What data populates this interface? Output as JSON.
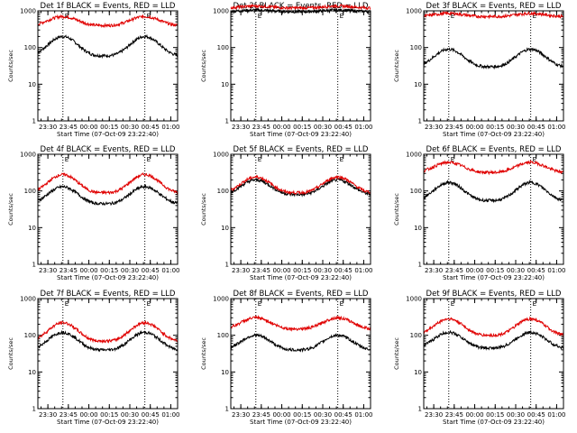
{
  "chart_data": [
    {
      "type": "line",
      "title": "Det 1f BLACK = Events, RED = LLD",
      "xlabel": "Start Time (07-Oct-09 23:22:40)",
      "ylabel": "Counts/sec",
      "y_scale": "log",
      "ylim": [
        1,
        1000
      ],
      "yticks": [
        "1",
        "10",
        "100",
        "1000"
      ],
      "xlim": [
        "23:22:40",
        "01:05:00"
      ],
      "xticks": [
        "23:30",
        "23:45",
        "00:00",
        "00:15",
        "00:30",
        "00:45",
        "01:00"
      ],
      "markers": [
        {
          "time": "23:41",
          "label": "E"
        },
        {
          "time": "00:41",
          "label": "E"
        }
      ],
      "series": [
        {
          "name": "BLACK = Events",
          "color": "#000000",
          "base": 60,
          "peaks": [
            200,
            200
          ]
        },
        {
          "name": "RED = LLD",
          "color": "#e00000",
          "base": 400,
          "peaks": [
            700,
            700
          ]
        }
      ]
    },
    {
      "type": "line",
      "title": "Det 2f BLACK = Events, RED = LLD",
      "xlabel": "Start Time (07-Oct-09 23:22:40)",
      "ylabel": "Counts/sec",
      "y_scale": "log",
      "ylim": [
        1,
        1000
      ],
      "yticks": [
        "1",
        "10",
        "100",
        "1000"
      ],
      "xlim": [
        "23:22:40",
        "01:05:00"
      ],
      "xticks": [
        "23:30",
        "23:45",
        "00:00",
        "00:15",
        "00:30",
        "00:45",
        "01:00"
      ],
      "markers": [
        {
          "time": "23:41",
          "label": "E"
        },
        {
          "time": "00:41",
          "label": "E"
        }
      ],
      "series": [
        {
          "name": "BLACK = Events",
          "color": "#000000",
          "base": 950,
          "peaks": [
            1050,
            1050
          ]
        },
        {
          "name": "RED = LLD",
          "color": "#e00000",
          "base": 1200,
          "peaks": [
            1350,
            1350
          ]
        }
      ]
    },
    {
      "type": "line",
      "title": "Det 3f BLACK = Events, RED = LLD",
      "xlabel": "Start Time (07-Oct-09 23:22:40)",
      "ylabel": "Counts/sec",
      "y_scale": "log",
      "ylim": [
        1,
        1000
      ],
      "yticks": [
        "1",
        "10",
        "100",
        "1000"
      ],
      "xlim": [
        "23:22:40",
        "01:05:00"
      ],
      "xticks": [
        "23:30",
        "23:45",
        "00:00",
        "00:15",
        "00:30",
        "00:45",
        "01:00"
      ],
      "markers": [
        {
          "time": "23:41",
          "label": "E"
        },
        {
          "time": "00:41",
          "label": "E"
        }
      ],
      "series": [
        {
          "name": "BLACK = Events",
          "color": "#000000",
          "base": 30,
          "peaks": [
            90,
            90
          ]
        },
        {
          "name": "RED = LLD",
          "color": "#e00000",
          "base": 700,
          "peaks": [
            850,
            850
          ]
        }
      ]
    },
    {
      "type": "line",
      "title": "Det 4f BLACK = Events, RED = LLD",
      "xlabel": "Start Time (07-Oct-09 23:22:40)",
      "ylabel": "Counts/sec",
      "y_scale": "log",
      "ylim": [
        1,
        1000
      ],
      "yticks": [
        "1",
        "10",
        "100",
        "1000"
      ],
      "xlim": [
        "23:22:40",
        "01:05:00"
      ],
      "xticks": [
        "23:30",
        "23:45",
        "00:00",
        "00:15",
        "00:30",
        "00:45",
        "01:00"
      ],
      "markers": [
        {
          "time": "23:41",
          "label": "E"
        },
        {
          "time": "00:41",
          "label": "E"
        }
      ],
      "series": [
        {
          "name": "BLACK = Events",
          "color": "#000000",
          "base": 45,
          "peaks": [
            130,
            130
          ]
        },
        {
          "name": "RED = LLD",
          "color": "#e00000",
          "base": 90,
          "peaks": [
            280,
            280
          ]
        }
      ]
    },
    {
      "type": "line",
      "title": "Det 5f BLACK = Events, RED = LLD",
      "xlabel": "Start Time (07-Oct-09 23:22:40)",
      "ylabel": "Counts/sec",
      "y_scale": "log",
      "ylim": [
        1,
        1000
      ],
      "yticks": [
        "1",
        "10",
        "100",
        "1000"
      ],
      "xlim": [
        "23:22:40",
        "01:05:00"
      ],
      "xticks": [
        "23:30",
        "23:45",
        "00:00",
        "00:15",
        "00:30",
        "00:45",
        "01:00"
      ],
      "markers": [
        {
          "time": "23:41",
          "label": "E"
        },
        {
          "time": "00:41",
          "label": "E"
        }
      ],
      "series": [
        {
          "name": "BLACK = Events",
          "color": "#000000",
          "base": 80,
          "peaks": [
            200,
            200
          ]
        },
        {
          "name": "RED = LLD",
          "color": "#e00000",
          "base": 90,
          "peaks": [
            240,
            240
          ]
        }
      ]
    },
    {
      "type": "line",
      "title": "Det 6f BLACK = Events, RED = LLD",
      "xlabel": "Start Time (07-Oct-09 23:22:40)",
      "ylabel": "Counts/sec",
      "y_scale": "log",
      "ylim": [
        1,
        1000
      ],
      "yticks": [
        "1",
        "10",
        "100",
        "1000"
      ],
      "xlim": [
        "23:22:40",
        "01:05:00"
      ],
      "xticks": [
        "23:30",
        "23:45",
        "00:00",
        "00:15",
        "00:30",
        "00:45",
        "01:00"
      ],
      "markers": [
        {
          "time": "23:41",
          "label": "E"
        },
        {
          "time": "00:41",
          "label": "E"
        }
      ],
      "series": [
        {
          "name": "BLACK = Events",
          "color": "#000000",
          "base": 55,
          "peaks": [
            170,
            170
          ]
        },
        {
          "name": "RED = LLD",
          "color": "#e00000",
          "base": 320,
          "peaks": [
            600,
            600
          ]
        }
      ]
    },
    {
      "type": "line",
      "title": "Det 7f BLACK = Events, RED = LLD",
      "xlabel": "Start Time (07-Oct-09 23:22:40)",
      "ylabel": "Counts/sec",
      "y_scale": "log",
      "ylim": [
        1,
        1000
      ],
      "yticks": [
        "1",
        "10",
        "100",
        "1000"
      ],
      "xlim": [
        "23:22:40",
        "01:05:00"
      ],
      "xticks": [
        "23:30",
        "23:45",
        "00:00",
        "00:15",
        "00:30",
        "00:45",
        "01:00"
      ],
      "markers": [
        {
          "time": "23:41",
          "label": "E"
        },
        {
          "time": "00:41",
          "label": "E"
        }
      ],
      "series": [
        {
          "name": "BLACK = Events",
          "color": "#000000",
          "base": 40,
          "peaks": [
            120,
            120
          ]
        },
        {
          "name": "RED = LLD",
          "color": "#e00000",
          "base": 70,
          "peaks": [
            220,
            220
          ]
        }
      ]
    },
    {
      "type": "line",
      "title": "Det 8f BLACK = Events, RED = LLD",
      "xlabel": "Start Time (07-Oct-09 23:22:40)",
      "ylabel": "Counts/sec",
      "y_scale": "log",
      "ylim": [
        1,
        1000
      ],
      "yticks": [
        "1",
        "10",
        "100",
        "1000"
      ],
      "xlim": [
        "23:22:40",
        "01:05:00"
      ],
      "xticks": [
        "23:30",
        "23:45",
        "00:00",
        "00:15",
        "00:30",
        "00:45",
        "01:00"
      ],
      "markers": [
        {
          "time": "23:41",
          "label": "E"
        },
        {
          "time": "00:41",
          "label": "E"
        }
      ],
      "series": [
        {
          "name": "BLACK = Events",
          "color": "#000000",
          "base": 40,
          "peaks": [
            100,
            100
          ]
        },
        {
          "name": "RED = LLD",
          "color": "#e00000",
          "base": 150,
          "peaks": [
            300,
            300
          ]
        }
      ]
    },
    {
      "type": "line",
      "title": "Det 9f BLACK = Events, RED = LLD",
      "xlabel": "Start Time (07-Oct-09 23:22:40)",
      "ylabel": "Counts/sec",
      "y_scale": "log",
      "ylim": [
        1,
        1000
      ],
      "yticks": [
        "1",
        "10",
        "100",
        "1000"
      ],
      "xlim": [
        "23:22:40",
        "01:05:00"
      ],
      "xticks": [
        "23:30",
        "23:45",
        "00:00",
        "00:15",
        "00:30",
        "00:45",
        "01:00"
      ],
      "markers": [
        {
          "time": "23:41",
          "label": "E"
        },
        {
          "time": "00:41",
          "label": "E"
        }
      ],
      "series": [
        {
          "name": "BLACK = Events",
          "color": "#000000",
          "base": 45,
          "peaks": [
            120,
            120
          ]
        },
        {
          "name": "RED = LLD",
          "color": "#e00000",
          "base": 100,
          "peaks": [
            280,
            280
          ]
        }
      ]
    }
  ]
}
